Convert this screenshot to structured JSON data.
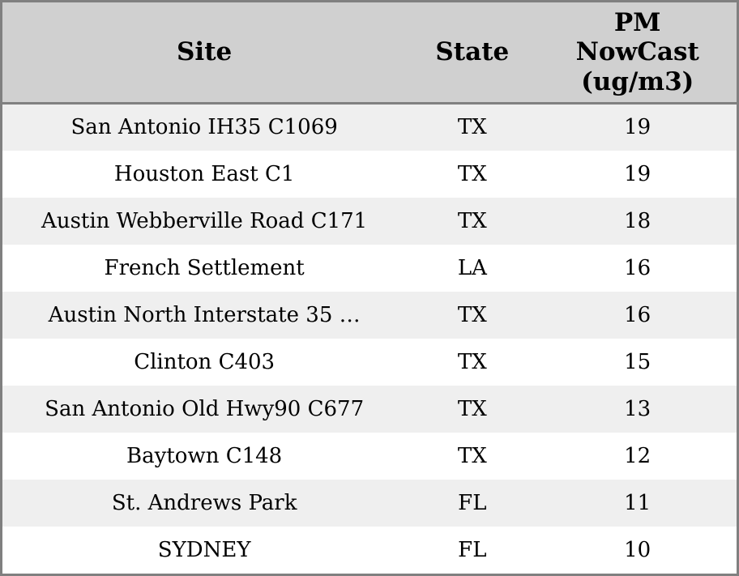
{
  "colors": {
    "border": "#808080",
    "header_bg": "#d0d0d0",
    "stripe_bg": "#efefef",
    "row_bg": "#ffffff",
    "text": "#000000"
  },
  "table": {
    "headers": {
      "site": "Site",
      "state": "State",
      "pm": "PM\nNowCast\n(ug/m3)"
    },
    "rows": [
      {
        "site": "San Antonio IH35 C1069",
        "state": "TX",
        "pm": "19"
      },
      {
        "site": "Houston East C1",
        "state": "TX",
        "pm": "19"
      },
      {
        "site": "Austin Webberville Road C171",
        "state": "TX",
        "pm": "18"
      },
      {
        "site": "French Settlement",
        "state": "LA",
        "pm": "16"
      },
      {
        "site": "Austin North Interstate 35 …",
        "state": "TX",
        "pm": "16"
      },
      {
        "site": "Clinton C403",
        "state": "TX",
        "pm": "15"
      },
      {
        "site": "San Antonio Old Hwy90 C677",
        "state": "TX",
        "pm": "13"
      },
      {
        "site": "Baytown C148",
        "state": "TX",
        "pm": "12"
      },
      {
        "site": "St. Andrews Park",
        "state": "FL",
        "pm": "11"
      },
      {
        "site": "SYDNEY",
        "state": "FL",
        "pm": "10"
      }
    ]
  }
}
